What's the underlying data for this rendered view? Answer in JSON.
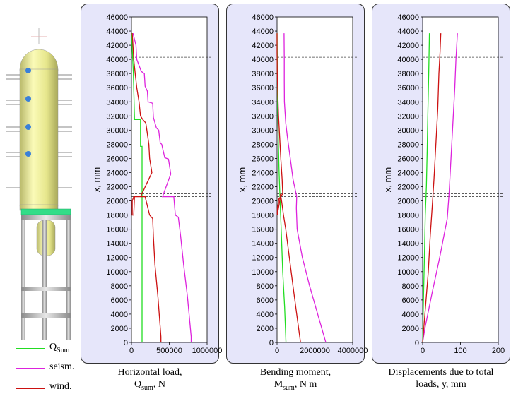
{
  "legend": {
    "items": [
      {
        "main": "Q",
        "sub": "Sum",
        "color": "#22dd22"
      },
      {
        "main": "seism.",
        "sub": "",
        "color": "#dd22dd"
      },
      {
        "main": "wind.",
        "sub": "",
        "color": "#cc1111"
      }
    ]
  },
  "captions": [
    {
      "line1": "Horizontal load,",
      "main": "Q",
      "sub": "sum",
      "rest": ", N"
    },
    {
      "line1": "Bending moment,",
      "main": "M",
      "sub": "sum",
      "rest": ", N m"
    },
    {
      "line1": "Displacements due to total",
      "main": "loads, y, mm",
      "sub": "",
      "rest": ""
    }
  ],
  "chart_data": [
    {
      "type": "line",
      "ylabel": "x, mm",
      "xlabel": "",
      "ylim": [
        0,
        46000
      ],
      "xlim": [
        0,
        1000000
      ],
      "yticks": [
        0,
        2000,
        4000,
        6000,
        8000,
        10000,
        12000,
        14000,
        16000,
        18000,
        20000,
        22000,
        24000,
        26000,
        28000,
        30000,
        32000,
        34000,
        36000,
        38000,
        40000,
        42000,
        44000,
        46000
      ],
      "xticks": [
        0,
        500000,
        1000000
      ],
      "xtick_labels": [
        "0",
        "500000",
        "1000000"
      ],
      "reference_lines_y": [
        40300,
        24100,
        21000,
        20600
      ],
      "series": [
        {
          "name": "Q_Sum",
          "color": "#22dd22",
          "points": [
            [
              140000,
              0
            ],
            [
              140000,
              27700
            ],
            [
              120000,
              27700
            ],
            [
              120000,
              31500
            ],
            [
              40000,
              31500
            ],
            [
              25000,
              38000
            ],
            [
              10000,
              41500
            ],
            [
              5000,
              43700
            ]
          ]
        },
        {
          "name": "seism.",
          "color": "#dd22dd",
          "points": [
            [
              790000,
              0
            ],
            [
              790000,
              800
            ],
            [
              740000,
              6500
            ],
            [
              690000,
              11000
            ],
            [
              650000,
              15000
            ],
            [
              620000,
              17700
            ],
            [
              580000,
              18000
            ],
            [
              560000,
              20600
            ],
            [
              410000,
              20600
            ],
            [
              520000,
              23800
            ],
            [
              490000,
              25900
            ],
            [
              440000,
              26100
            ],
            [
              400000,
              28000
            ],
            [
              380000,
              28200
            ],
            [
              360000,
              30000
            ],
            [
              330000,
              30300
            ],
            [
              290000,
              31800
            ],
            [
              280000,
              33800
            ],
            [
              220000,
              34000
            ],
            [
              210000,
              35500
            ],
            [
              180000,
              36200
            ],
            [
              170000,
              38000
            ],
            [
              130000,
              38300
            ],
            [
              70000,
              40000
            ],
            [
              60000,
              42000
            ],
            [
              20000,
              43700
            ]
          ]
        },
        {
          "name": "wind.",
          "color": "#cc1111",
          "points": [
            [
              390000,
              0
            ],
            [
              390000,
              800
            ],
            [
              350000,
              6500
            ],
            [
              310000,
              11000
            ],
            [
              290000,
              15000
            ],
            [
              280000,
              17500
            ],
            [
              240000,
              18000
            ],
            [
              180000,
              20600
            ],
            [
              40000,
              20600
            ],
            [
              30000,
              18000
            ],
            [
              10000,
              18000
            ],
            [
              10000,
              20000
            ],
            [
              30000,
              20600
            ],
            [
              120000,
              20600
            ],
            [
              270000,
              24000
            ],
            [
              240000,
              26000
            ],
            [
              230000,
              28000
            ],
            [
              210000,
              29500
            ],
            [
              190000,
              31000
            ],
            [
              150000,
              31500
            ],
            [
              120000,
              32000
            ],
            [
              100000,
              34000
            ],
            [
              70000,
              36000
            ],
            [
              50000,
              38000
            ],
            [
              30000,
              40000
            ],
            [
              20000,
              42000
            ],
            [
              10000,
              43700
            ]
          ]
        }
      ]
    },
    {
      "type": "line",
      "ylabel": "x, mm",
      "xlabel": "",
      "ylim": [
        0,
        46000
      ],
      "xlim": [
        0,
        4000000
      ],
      "yticks": [
        0,
        2000,
        4000,
        6000,
        8000,
        10000,
        12000,
        14000,
        16000,
        18000,
        20000,
        22000,
        24000,
        26000,
        28000,
        30000,
        32000,
        34000,
        36000,
        38000,
        40000,
        42000,
        44000,
        46000
      ],
      "xticks": [
        0,
        2000000,
        4000000
      ],
      "xtick_labels": [
        "0",
        "2000000",
        "4000000"
      ],
      "reference_lines_y": [
        40300,
        24100,
        21000,
        20600
      ],
      "series": [
        {
          "name": "Q_Sum",
          "color": "#22dd22",
          "points": [
            [
              470000,
              0
            ],
            [
              400000,
              5000
            ],
            [
              300000,
              10000
            ],
            [
              230000,
              15000
            ],
            [
              160000,
              20000
            ],
            [
              110000,
              24000
            ],
            [
              70000,
              28000
            ],
            [
              30000,
              34000
            ],
            [
              10000,
              40000
            ],
            [
              0,
              43700
            ]
          ]
        },
        {
          "name": "seism.",
          "color": "#dd22dd",
          "points": [
            [
              2580000,
              0
            ],
            [
              2150000,
              4000
            ],
            [
              1720000,
              8000
            ],
            [
              1340000,
              12000
            ],
            [
              1060000,
              16000
            ],
            [
              1020000,
              19000
            ],
            [
              1040000,
              20600
            ],
            [
              850000,
              23000
            ],
            [
              700000,
              26000
            ],
            [
              550000,
              29000
            ],
            [
              460000,
              31000
            ],
            [
              390000,
              34000
            ],
            [
              380000,
              37000
            ],
            [
              380000,
              40000
            ],
            [
              370000,
              43700
            ]
          ]
        },
        {
          "name": "wind.",
          "color": "#cc1111",
          "points": [
            [
              1240000,
              0
            ],
            [
              1040000,
              4000
            ],
            [
              840000,
              8000
            ],
            [
              650000,
              12000
            ],
            [
              460000,
              16000
            ],
            [
              340000,
              18000
            ],
            [
              240000,
              20000
            ],
            [
              180000,
              21000
            ],
            [
              180000,
              20600
            ],
            [
              10000,
              18000
            ],
            [
              20000,
              19000
            ],
            [
              100000,
              20300
            ],
            [
              300000,
              21000
            ],
            [
              270000,
              23000
            ],
            [
              200000,
              26000
            ],
            [
              140000,
              29000
            ],
            [
              80000,
              32000
            ],
            [
              40000,
              35000
            ],
            [
              10000,
              38000
            ],
            [
              0,
              41000
            ],
            [
              0,
              43700
            ]
          ]
        }
      ]
    },
    {
      "type": "line",
      "ylabel": "x, mm",
      "xlabel": "",
      "ylim": [
        0,
        46000
      ],
      "xlim": [
        0,
        200
      ],
      "yticks": [
        0,
        2000,
        4000,
        6000,
        8000,
        10000,
        12000,
        14000,
        16000,
        18000,
        20000,
        22000,
        24000,
        26000,
        28000,
        30000,
        32000,
        34000,
        36000,
        38000,
        40000,
        42000,
        44000,
        46000
      ],
      "xticks": [
        0,
        100,
        200
      ],
      "xtick_labels": [
        "0",
        "100",
        "200"
      ],
      "reference_lines_y": [
        40300,
        24100,
        21000,
        20600
      ],
      "series": [
        {
          "name": "Q_Sum",
          "color": "#22dd22",
          "points": [
            [
              0,
              0
            ],
            [
              1,
              3000
            ],
            [
              3,
              8000
            ],
            [
              5,
              13000
            ],
            [
              7,
              18000
            ],
            [
              10,
              22000
            ],
            [
              12,
              27000
            ],
            [
              14,
              33000
            ],
            [
              16,
              38000
            ],
            [
              18,
              43700
            ]
          ]
        },
        {
          "name": "seism.",
          "color": "#dd22dd",
          "points": [
            [
              0,
              0
            ],
            [
              6,
              2000
            ],
            [
              25,
              7000
            ],
            [
              45,
              12000
            ],
            [
              65,
              17500
            ],
            [
              70,
              21000
            ],
            [
              75,
              26000
            ],
            [
              80,
              31000
            ],
            [
              85,
              36000
            ],
            [
              88,
              40000
            ],
            [
              92,
              43700
            ]
          ]
        },
        {
          "name": "wind.",
          "color": "#cc1111",
          "points": [
            [
              0,
              0
            ],
            [
              3,
              2000
            ],
            [
              9,
              6000
            ],
            [
              15,
              10000
            ],
            [
              20,
              15000
            ],
            [
              25,
              19000
            ],
            [
              30,
              23000
            ],
            [
              35,
              28000
            ],
            [
              40,
              33000
            ],
            [
              43,
              38000
            ],
            [
              46,
              41000
            ],
            [
              48,
              43700
            ]
          ]
        }
      ]
    }
  ]
}
